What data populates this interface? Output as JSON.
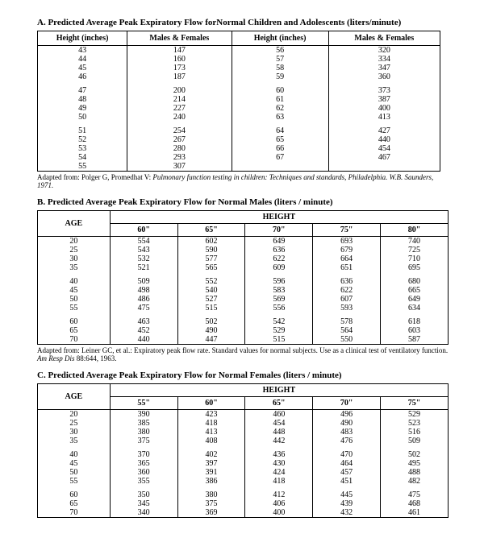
{
  "sectionA": {
    "title": "A.  Predicted Average Peak Expiratory Flow forNormal Children and Adolescents (liters/minute)",
    "headers": [
      "Height (inches)",
      "Males & Females",
      "Height (inches)",
      "Males & Females"
    ],
    "groups": [
      [
        [
          "43",
          "147",
          "56",
          "320"
        ],
        [
          "44",
          "160",
          "57",
          "334"
        ],
        [
          "45",
          "173",
          "58",
          "347"
        ],
        [
          "46",
          "187",
          "59",
          "360"
        ]
      ],
      [
        [
          "47",
          "200",
          "60",
          "373"
        ],
        [
          "48",
          "214",
          "61",
          "387"
        ],
        [
          "49",
          "227",
          "62",
          "400"
        ],
        [
          "50",
          "240",
          "63",
          "413"
        ]
      ],
      [
        [
          "51",
          "254",
          "64",
          "427"
        ],
        [
          "52",
          "267",
          "65",
          "440"
        ],
        [
          "53",
          "280",
          "66",
          "454"
        ],
        [
          "54",
          "293",
          "67",
          "467"
        ],
        [
          "55",
          "307",
          "",
          ""
        ]
      ]
    ],
    "caption_plain": "Adapted from: Polger G, Promedhat V: ",
    "caption_italic": "Pulmonary function testing in children: Techniques and standards, Philadelphia. W.B. Saunders, 1971."
  },
  "sectionB": {
    "title": "B.  Predicted Average Peak Expiratory Flow for Normal Males (liters / minute)",
    "ageLabel": "AGE",
    "heightLabel": "HEIGHT",
    "heights": [
      "60\"",
      "65\"",
      "70\"",
      "75\"",
      "80\""
    ],
    "groups": [
      [
        [
          "20",
          "554",
          "602",
          "649",
          "693",
          "740"
        ],
        [
          "25",
          "543",
          "590",
          "636",
          "679",
          "725"
        ],
        [
          "30",
          "532",
          "577",
          "622",
          "664",
          "710"
        ],
        [
          "35",
          "521",
          "565",
          "609",
          "651",
          "695"
        ]
      ],
      [
        [
          "40",
          "509",
          "552",
          "596",
          "636",
          "680"
        ],
        [
          "45",
          "498",
          "540",
          "583",
          "622",
          "665"
        ],
        [
          "50",
          "486",
          "527",
          "569",
          "607",
          "649"
        ],
        [
          "55",
          "475",
          "515",
          "556",
          "593",
          "634"
        ]
      ],
      [
        [
          "60",
          "463",
          "502",
          "542",
          "578",
          "618"
        ],
        [
          "65",
          "452",
          "490",
          "529",
          "564",
          "603"
        ],
        [
          "70",
          "440",
          "447",
          "515",
          "550",
          "587"
        ]
      ]
    ],
    "caption_plain1": "Adapted from: Leiner GC, et al.: Expiratory peak flow rate. Standard values for normal subjects. Use as a clinical test of ventilatory function. ",
    "caption_italic": "Am Resp Dis",
    "caption_plain2": " 88:644, 1963."
  },
  "sectionC": {
    "title": "C.  Predicted Average Peak Expiratory Flow for Normal Females (liters / minute)",
    "ageLabel": "AGE",
    "heightLabel": "HEIGHT",
    "heights": [
      "55\"",
      "60\"",
      "65\"",
      "70\"",
      "75\""
    ],
    "groups": [
      [
        [
          "20",
          "390",
          "423",
          "460",
          "496",
          "529"
        ],
        [
          "25",
          "385",
          "418",
          "454",
          "490",
          "523"
        ],
        [
          "30",
          "380",
          "413",
          "448",
          "483",
          "516"
        ],
        [
          "35",
          "375",
          "408",
          "442",
          "476",
          "509"
        ]
      ],
      [
        [
          "40",
          "370",
          "402",
          "436",
          "470",
          "502"
        ],
        [
          "45",
          "365",
          "397",
          "430",
          "464",
          "495"
        ],
        [
          "50",
          "360",
          "391",
          "424",
          "457",
          "488"
        ],
        [
          "55",
          "355",
          "386",
          "418",
          "451",
          "482"
        ]
      ],
      [
        [
          "60",
          "350",
          "380",
          "412",
          "445",
          "475"
        ],
        [
          "65",
          "345",
          "375",
          "406",
          "439",
          "468"
        ],
        [
          "70",
          "340",
          "369",
          "400",
          "432",
          "461"
        ]
      ]
    ]
  }
}
